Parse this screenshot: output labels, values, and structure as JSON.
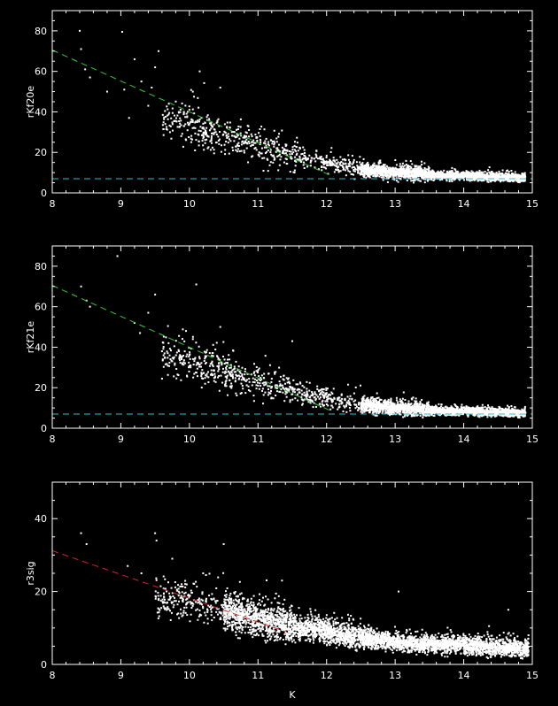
{
  "chart_data": [
    {
      "type": "scatter",
      "title": "",
      "xlabel": "",
      "ylabel": "rKf20e",
      "xlim": [
        8,
        15
      ],
      "ylim": [
        0,
        90
      ],
      "xticks": [
        "8",
        "9",
        "10",
        "11",
        "12",
        "13",
        "14",
        "15"
      ],
      "yticks": [
        "0",
        "20",
        "40",
        "60",
        "80"
      ],
      "background": "#000000",
      "point_color": "#ffffff",
      "reference_lines": [
        {
          "style": "dashed",
          "color": "#33cc33",
          "points": [
            [
              8,
              70.5
            ],
            [
              12.1,
              8
            ]
          ]
        },
        {
          "style": "dashed",
          "color": "#33bbcc",
          "points": [
            [
              8,
              7
            ],
            [
              15,
              7
            ]
          ]
        }
      ],
      "outliers": [
        [
          8.4,
          80
        ],
        [
          8.42,
          71
        ],
        [
          8.48,
          61
        ],
        [
          8.55,
          57
        ],
        [
          8.8,
          50
        ],
        [
          9.02,
          79.5
        ],
        [
          9.05,
          51
        ],
        [
          9.2,
          66
        ],
        [
          9.3,
          55
        ],
        [
          9.45,
          52
        ],
        [
          9.5,
          62
        ],
        [
          9.55,
          70
        ],
        [
          10.05,
          50
        ],
        [
          10.15,
          60
        ],
        [
          10.45,
          52
        ],
        [
          9.4,
          43
        ],
        [
          9.7,
          44
        ],
        [
          9.12,
          37
        ]
      ],
      "density_bands": [
        {
          "x": [
            9.6,
            10.5
          ],
          "center": [
            36,
            27
          ],
          "spread": 7
        },
        {
          "x": [
            10.5,
            11.6
          ],
          "center": [
            27,
            17
          ],
          "spread": 6
        },
        {
          "x": [
            11.6,
            12.5
          ],
          "center": [
            17,
            11
          ],
          "spread": 4
        },
        {
          "x": [
            12.5,
            13.5
          ],
          "center": [
            11,
            8.5
          ],
          "spread": 2.5
        },
        {
          "x": [
            13.5,
            14.9
          ],
          "center": [
            8.5,
            7.2
          ],
          "spread": 1.5
        }
      ]
    },
    {
      "type": "scatter",
      "title": "",
      "xlabel": "",
      "ylabel": "rKf21e",
      "xlim": [
        8,
        15
      ],
      "ylim": [
        0,
        90
      ],
      "xticks": [
        "8",
        "9",
        "10",
        "11",
        "12",
        "13",
        "14",
        "15"
      ],
      "yticks": [
        "0",
        "20",
        "40",
        "60",
        "80"
      ],
      "background": "#000000",
      "point_color": "#ffffff",
      "reference_lines": [
        {
          "style": "dashed",
          "color": "#33cc33",
          "points": [
            [
              8,
              70.5
            ],
            [
              12.1,
              8
            ]
          ]
        },
        {
          "style": "dashed",
          "color": "#33bbcc",
          "points": [
            [
              8,
              7
            ],
            [
              15,
              7
            ]
          ]
        }
      ],
      "outliers": [
        [
          8.42,
          70
        ],
        [
          8.5,
          63
        ],
        [
          8.55,
          60
        ],
        [
          8.95,
          85
        ],
        [
          9.2,
          52
        ],
        [
          9.4,
          57
        ],
        [
          9.5,
          66
        ],
        [
          9.95,
          48
        ],
        [
          10.1,
          71
        ],
        [
          10.05,
          44
        ],
        [
          9.6,
          38
        ],
        [
          10.45,
          50
        ],
        [
          11.5,
          43
        ],
        [
          9.28,
          47
        ]
      ],
      "density_bands": [
        {
          "x": [
            9.6,
            10.5
          ],
          "center": [
            35,
            27
          ],
          "spread": 7
        },
        {
          "x": [
            10.5,
            11.6
          ],
          "center": [
            26,
            17
          ],
          "spread": 6
        },
        {
          "x": [
            11.6,
            12.5
          ],
          "center": [
            17,
            11
          ],
          "spread": 4
        },
        {
          "x": [
            12.5,
            13.5
          ],
          "center": [
            11,
            8.5
          ],
          "spread": 2.5
        },
        {
          "x": [
            13.5,
            14.9
          ],
          "center": [
            8.5,
            7.2
          ],
          "spread": 1.5
        }
      ]
    },
    {
      "type": "scatter",
      "title": "",
      "xlabel": "K",
      "ylabel": "r3sig",
      "xlim": [
        8,
        15
      ],
      "ylim": [
        0,
        50
      ],
      "xticks": [
        "8",
        "9",
        "10",
        "11",
        "12",
        "13",
        "14",
        "15"
      ],
      "yticks": [
        "0",
        "20",
        "40"
      ],
      "background": "#000000",
      "point_color": "#ffffff",
      "reference_lines": [
        {
          "style": "dashed",
          "color": "#dd2222",
          "points": [
            [
              8,
              31.2
            ],
            [
              11.4,
              9
            ]
          ]
        }
      ],
      "outliers": [
        [
          8.42,
          36
        ],
        [
          8.5,
          33
        ],
        [
          9.1,
          27
        ],
        [
          9.5,
          36
        ],
        [
          9.52,
          34
        ],
        [
          9.75,
          29
        ],
        [
          10.5,
          33
        ],
        [
          11.35,
          23
        ],
        [
          13.05,
          20
        ],
        [
          14.65,
          15
        ],
        [
          9.3,
          25
        ],
        [
          10.2,
          25
        ]
      ],
      "density_bands": [
        {
          "x": [
            9.5,
            10.5
          ],
          "center": [
            18,
            15
          ],
          "spread": 4
        },
        {
          "x": [
            10.5,
            11.5
          ],
          "center": [
            14,
            10
          ],
          "spread": 3.5
        },
        {
          "x": [
            11.5,
            12.5
          ],
          "center": [
            10,
            7
          ],
          "spread": 2.5
        },
        {
          "x": [
            12.5,
            13.4
          ],
          "center": [
            7,
            5
          ],
          "spread": 1.8
        },
        {
          "x": [
            13.4,
            14.95
          ],
          "center": [
            5.5,
            4
          ],
          "spread": 1.8
        }
      ]
    }
  ]
}
